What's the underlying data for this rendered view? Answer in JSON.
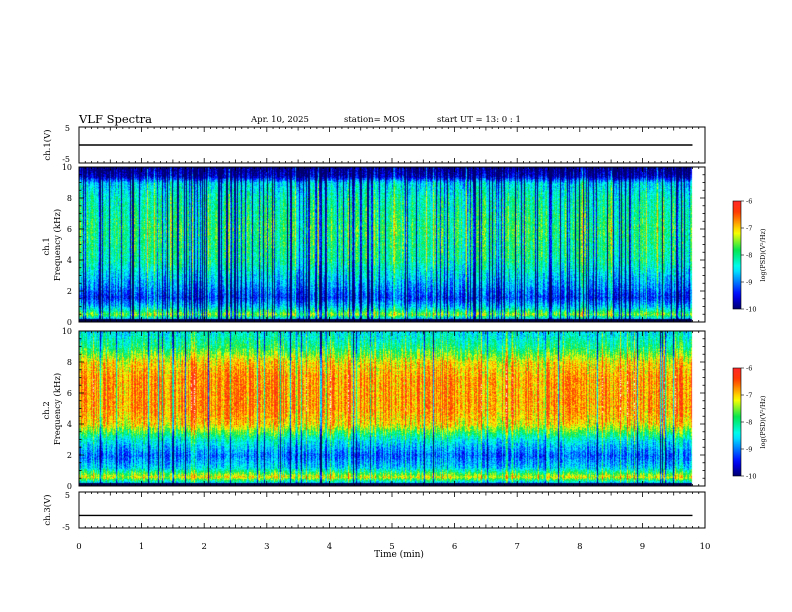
{
  "header": {
    "title": "VLF Spectra",
    "date": "Apr. 10, 2025",
    "station": "station= MOS",
    "start": "start UT =  13: 0  : 1"
  },
  "chart_data": [
    {
      "type": "line",
      "panel": "ch1-waveform",
      "ylabel": "ch.1(V)",
      "ylim": [
        -5,
        5
      ],
      "yticks": [
        "5",
        "-5"
      ],
      "x": [
        0,
        9.8
      ],
      "series": [
        {
          "values": [
            0,
            0
          ]
        }
      ]
    },
    {
      "type": "heatmap",
      "panel": "ch1-spectrogram",
      "ylabel": "ch.1\nFrequency (kHz)",
      "ylim": [
        0,
        10
      ],
      "yticks": [
        "0",
        "2",
        "4",
        "6",
        "8",
        "10"
      ],
      "colorbar": {
        "label": "log(PSD)(V²/Hz)",
        "range": [
          -10,
          -6
        ],
        "ticks": [
          "-6",
          "-7",
          "-8",
          "-9",
          "-10"
        ]
      },
      "profile": [
        {
          "f": 0.0,
          "v": -9.8
        },
        {
          "f": 0.5,
          "v": -7.5
        },
        {
          "f": 1.0,
          "v": -8.6
        },
        {
          "f": 1.6,
          "v": -9.3
        },
        {
          "f": 2.5,
          "v": -8.8
        },
        {
          "f": 4.0,
          "v": -8.1
        },
        {
          "f": 6.0,
          "v": -7.9
        },
        {
          "f": 8.0,
          "v": -8.2
        },
        {
          "f": 9.0,
          "v": -8.6
        },
        {
          "f": 9.4,
          "v": -9.7
        },
        {
          "f": 10.0,
          "v": -10.0
        }
      ]
    },
    {
      "type": "heatmap",
      "panel": "ch2-spectrogram",
      "ylabel": "ch.2\nFrequency (kHz)",
      "ylim": [
        0,
        10
      ],
      "yticks": [
        "0",
        "2",
        "4",
        "6",
        "8",
        "10"
      ],
      "colorbar": {
        "label": "log(PSD)(V²/Hz)",
        "range": [
          -10,
          -6
        ],
        "ticks": [
          "-6",
          "-7",
          "-8",
          "-9",
          "-10"
        ]
      },
      "profile": [
        {
          "f": 0.0,
          "v": -9.6
        },
        {
          "f": 0.6,
          "v": -7.2
        },
        {
          "f": 1.2,
          "v": -8.6
        },
        {
          "f": 2.0,
          "v": -9.1
        },
        {
          "f": 3.0,
          "v": -8.4
        },
        {
          "f": 4.0,
          "v": -7.1
        },
        {
          "f": 5.0,
          "v": -6.8
        },
        {
          "f": 7.0,
          "v": -6.8
        },
        {
          "f": 8.0,
          "v": -7.1
        },
        {
          "f": 9.0,
          "v": -8.0
        },
        {
          "f": 10.0,
          "v": -8.5
        }
      ]
    },
    {
      "type": "line",
      "panel": "ch3-waveform",
      "ylabel": "ch.3(V)",
      "ylim": [
        -5,
        5
      ],
      "yticks": [
        "5",
        "-5"
      ],
      "x": [
        0,
        9.8
      ],
      "series": [
        {
          "values": [
            -1.5,
            -1.5
          ]
        }
      ]
    }
  ],
  "xaxis": {
    "label": "Time (min)",
    "xlim": [
      0,
      10
    ],
    "ticks": [
      "0",
      "1",
      "2",
      "3",
      "4",
      "5",
      "6",
      "7",
      "8",
      "9",
      "10"
    ]
  }
}
